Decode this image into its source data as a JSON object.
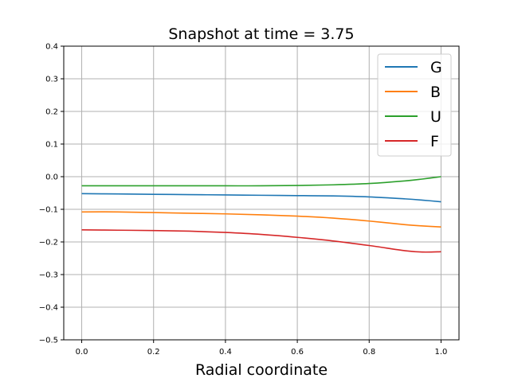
{
  "chart_data": {
    "type": "line",
    "title": "Snapshot at time = 3.75",
    "xlabel": "Radial coordinate",
    "ylabel": "",
    "xlim": [
      -0.05,
      1.05
    ],
    "ylim": [
      -0.5,
      0.4
    ],
    "x_ticks": [
      "0.0",
      "0.2",
      "0.4",
      "0.6",
      "0.8",
      "1.0"
    ],
    "y_ticks": [
      "0.4",
      "0.3",
      "0.2",
      "0.1",
      "0.0",
      "−0.1",
      "−0.2",
      "−0.3",
      "−0.4",
      "−0.5"
    ],
    "grid": true,
    "legend_position": "top-right",
    "x": [
      0.0,
      0.1,
      0.2,
      0.3,
      0.4,
      0.5,
      0.6,
      0.7,
      0.8,
      0.9,
      0.95,
      1.0
    ],
    "series": [
      {
        "name": "G",
        "color": "#1f77b4",
        "values": [
          -0.052,
          -0.053,
          -0.054,
          -0.055,
          -0.056,
          -0.057,
          -0.058,
          -0.059,
          -0.062,
          -0.068,
          -0.072,
          -0.077
        ]
      },
      {
        "name": "B",
        "color": "#ff7f0e",
        "values": [
          -0.108,
          -0.108,
          -0.11,
          -0.112,
          -0.114,
          -0.117,
          -0.121,
          -0.127,
          -0.136,
          -0.147,
          -0.151,
          -0.154
        ]
      },
      {
        "name": "U",
        "color": "#2ca02c",
        "values": [
          -0.028,
          -0.028,
          -0.028,
          -0.028,
          -0.028,
          -0.028,
          -0.027,
          -0.025,
          -0.021,
          -0.013,
          -0.007,
          0.0
        ]
      },
      {
        "name": "F",
        "color": "#d62728",
        "values": [
          -0.163,
          -0.164,
          -0.165,
          -0.167,
          -0.171,
          -0.177,
          -0.186,
          -0.197,
          -0.211,
          -0.227,
          -0.231,
          -0.23
        ]
      }
    ]
  }
}
